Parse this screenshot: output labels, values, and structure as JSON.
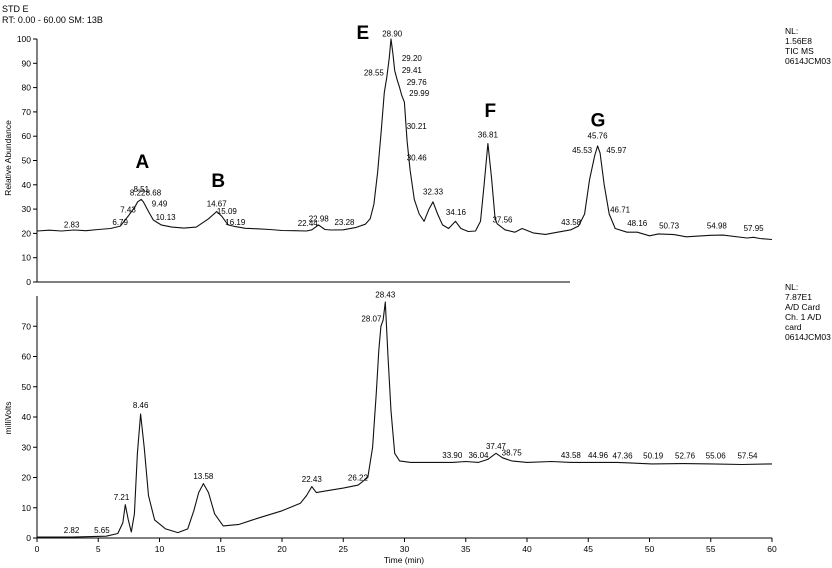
{
  "header": {
    "line1": "STD E",
    "line2": "RT: 0.00 - 60.00  SM: 13B"
  },
  "chart_data": [
    {
      "type": "line",
      "ylabel": "Relative Abundance",
      "xlim": [
        0,
        60
      ],
      "ylim": [
        0,
        100
      ],
      "yticks": [
        0,
        10,
        20,
        30,
        40,
        50,
        60,
        70,
        80,
        90,
        100
      ],
      "info_lines": [
        "NL:",
        "1.56E8",
        "TIC  MS",
        "0614JCM03"
      ],
      "series": [
        {
          "points": [
            [
              0,
              21
            ],
            [
              1,
              21.3
            ],
            [
              2,
              21
            ],
            [
              3,
              21.4
            ],
            [
              4,
              21.1
            ],
            [
              5,
              21.6
            ],
            [
              6,
              22
            ],
            [
              6.8,
              23
            ],
            [
              7.43,
              27
            ],
            [
              8.0,
              31
            ],
            [
              8.22,
              33
            ],
            [
              8.51,
              34
            ],
            [
              8.68,
              33
            ],
            [
              9.1,
              29
            ],
            [
              9.49,
              25.5
            ],
            [
              10.13,
              23.5
            ],
            [
              11,
              22.6
            ],
            [
              12,
              22.2
            ],
            [
              13,
              22.6
            ],
            [
              14,
              26
            ],
            [
              14.67,
              29
            ],
            [
              15.09,
              27
            ],
            [
              15.6,
              23.5
            ],
            [
              16.19,
              22.8
            ],
            [
              17,
              22.1
            ],
            [
              18,
              21.9
            ],
            [
              19,
              21.6
            ],
            [
              20,
              21.2
            ],
            [
              21,
              21.1
            ],
            [
              22,
              21
            ],
            [
              22.44,
              21.5
            ],
            [
              22.98,
              23.5
            ],
            [
              23.5,
              21.6
            ],
            [
              24,
              21.4
            ],
            [
              25,
              21.5
            ],
            [
              26,
              22.4
            ],
            [
              26.8,
              23.8
            ],
            [
              27.2,
              26
            ],
            [
              27.5,
              32
            ],
            [
              27.8,
              45
            ],
            [
              28.1,
              62
            ],
            [
              28.35,
              78
            ],
            [
              28.55,
              84
            ],
            [
              28.75,
              92
            ],
            [
              28.9,
              100
            ],
            [
              29.05,
              94
            ],
            [
              29.2,
              87
            ],
            [
              29.41,
              83
            ],
            [
              29.6,
              80
            ],
            [
              29.76,
              77
            ],
            [
              29.99,
              74
            ],
            [
              30.21,
              58
            ],
            [
              30.46,
              46
            ],
            [
              30.8,
              34
            ],
            [
              31.2,
              28
            ],
            [
              31.6,
              25
            ],
            [
              32.0,
              30
            ],
            [
              32.33,
              33
            ],
            [
              32.7,
              28
            ],
            [
              33.1,
              23.5
            ],
            [
              33.6,
              22
            ],
            [
              34.16,
              25
            ],
            [
              34.6,
              22
            ],
            [
              35.2,
              20.8
            ],
            [
              35.8,
              21
            ],
            [
              36.2,
              25
            ],
            [
              36.5,
              40
            ],
            [
              36.81,
              57
            ],
            [
              37.1,
              43
            ],
            [
              37.4,
              26
            ],
            [
              37.56,
              24
            ],
            [
              38.2,
              21.5
            ],
            [
              39,
              20.5
            ],
            [
              39.6,
              22
            ],
            [
              40.5,
              20.2
            ],
            [
              41.5,
              19.6
            ],
            [
              42.5,
              20.5
            ],
            [
              43.58,
              21.5
            ],
            [
              44.2,
              23
            ],
            [
              44.7,
              28
            ],
            [
              45.1,
              42
            ],
            [
              45.53,
              52
            ],
            [
              45.76,
              56
            ],
            [
              45.97,
              53
            ],
            [
              46.3,
              40
            ],
            [
              46.71,
              28
            ],
            [
              47.2,
              22
            ],
            [
              48.16,
              20.5
            ],
            [
              49,
              20.5
            ],
            [
              50,
              19
            ],
            [
              50.73,
              19.8
            ],
            [
              52,
              19.5
            ],
            [
              53,
              18.6
            ],
            [
              54.98,
              19.2
            ],
            [
              56,
              19.3
            ],
            [
              57.95,
              18.1
            ],
            [
              58.5,
              18.4
            ],
            [
              59,
              17.9
            ],
            [
              60,
              17.5
            ]
          ]
        }
      ],
      "peak_labels": [
        {
          "text": "2.83",
          "x": 2.83,
          "y": 22.5
        },
        {
          "text": "6.79",
          "x": 6.79,
          "y": 23.5
        },
        {
          "text": "7.43",
          "x": 7.43,
          "y": 28.5
        },
        {
          "text": "8.22",
          "x": 8.22,
          "y": 35.5
        },
        {
          "text": "8.51",
          "x": 8.51,
          "y": 37
        },
        {
          "text": "8.68",
          "x": 9.5,
          "y": 35.5
        },
        {
          "text": "9.49",
          "x": 10.0,
          "y": 31
        },
        {
          "text": "10.13",
          "x": 10.5,
          "y": 25.5
        },
        {
          "text": "14.67",
          "x": 14.67,
          "y": 31
        },
        {
          "text": "15.09",
          "x": 15.5,
          "y": 28
        },
        {
          "text": "16.19",
          "x": 16.19,
          "y": 23.5
        },
        {
          "text": "22.44",
          "x": 22.1,
          "y": 23
        },
        {
          "text": "22.98",
          "x": 23.0,
          "y": 25
        },
        {
          "text": "23.28",
          "x": 25.1,
          "y": 23.5
        },
        {
          "text": "28.55",
          "x": 27.5,
          "y": 85
        },
        {
          "text": "28.90",
          "x": 29.0,
          "y": 101
        },
        {
          "text": "29.20",
          "x": 30.6,
          "y": 91
        },
        {
          "text": "29.41",
          "x": 30.6,
          "y": 86
        },
        {
          "text": "29.76",
          "x": 31.0,
          "y": 81
        },
        {
          "text": "29.99",
          "x": 31.2,
          "y": 76.5
        },
        {
          "text": "30.21",
          "x": 31.0,
          "y": 63
        },
        {
          "text": "30.46",
          "x": 31.0,
          "y": 50
        },
        {
          "text": "32.33",
          "x": 32.33,
          "y": 36
        },
        {
          "text": "34.16",
          "x": 34.2,
          "y": 27.5
        },
        {
          "text": "36.81",
          "x": 36.81,
          "y": 59.5
        },
        {
          "text": "37.56",
          "x": 38.0,
          "y": 24.5
        },
        {
          "text": "43.58",
          "x": 43.6,
          "y": 23.5
        },
        {
          "text": "45.76",
          "x": 45.76,
          "y": 59
        },
        {
          "text": "45.53",
          "x": 44.5,
          "y": 53
        },
        {
          "text": "45.97",
          "x": 47.3,
          "y": 53
        },
        {
          "text": "46.71",
          "x": 47.6,
          "y": 28.5
        },
        {
          "text": "48.16",
          "x": 49.0,
          "y": 23
        },
        {
          "text": "50.73",
          "x": 51.6,
          "y": 22
        },
        {
          "text": "54.98",
          "x": 55.5,
          "y": 22
        },
        {
          "text": "57.95",
          "x": 58.5,
          "y": 21
        }
      ],
      "peak_letters": [
        {
          "text": "A",
          "x": 8.6,
          "y": 47
        },
        {
          "text": "B",
          "x": 14.8,
          "y": 39
        },
        {
          "text": "E",
          "x": 26.6,
          "y": 100
        },
        {
          "text": "F",
          "x": 37.0,
          "y": 68
        },
        {
          "text": "G",
          "x": 45.8,
          "y": 64
        }
      ]
    },
    {
      "type": "line",
      "xlabel": "Time (min)",
      "ylabel": "milliVolts",
      "xlim": [
        0,
        60
      ],
      "ylim": [
        0,
        80
      ],
      "yticks": [
        0,
        10,
        20,
        30,
        40,
        50,
        60,
        70
      ],
      "xticks": [
        0,
        5,
        10,
        15,
        20,
        25,
        30,
        35,
        40,
        45,
        50,
        55,
        60
      ],
      "info_lines": [
        "NL:",
        "7.87E1",
        "A/D Card",
        "Ch. 1  A/D",
        "card",
        "0614JCM03"
      ],
      "series": [
        {
          "points": [
            [
              0,
              0.3
            ],
            [
              2.82,
              0.3
            ],
            [
              5.65,
              0.6
            ],
            [
              6.6,
              1.5
            ],
            [
              7.0,
              5
            ],
            [
              7.21,
              11
            ],
            [
              7.45,
              6
            ],
            [
              7.7,
              2
            ],
            [
              7.95,
              8
            ],
            [
              8.2,
              28
            ],
            [
              8.46,
              41
            ],
            [
              8.75,
              30
            ],
            [
              9.1,
              14
            ],
            [
              9.6,
              6
            ],
            [
              10.5,
              3
            ],
            [
              11.5,
              1.8
            ],
            [
              12.3,
              3
            ],
            [
              12.8,
              9
            ],
            [
              13.2,
              15
            ],
            [
              13.58,
              18
            ],
            [
              14.0,
              15
            ],
            [
              14.5,
              8
            ],
            [
              15.2,
              4
            ],
            [
              16.5,
              4.5
            ],
            [
              18,
              6.5
            ],
            [
              20,
              9
            ],
            [
              21.5,
              11.5
            ],
            [
              22.0,
              14
            ],
            [
              22.43,
              17
            ],
            [
              22.8,
              15
            ],
            [
              23.5,
              15.5
            ],
            [
              25,
              16.5
            ],
            [
              26.22,
              17.5
            ],
            [
              27,
              20
            ],
            [
              27.4,
              30
            ],
            [
              27.7,
              48
            ],
            [
              27.9,
              62
            ],
            [
              28.07,
              70
            ],
            [
              28.25,
              72
            ],
            [
              28.43,
              78
            ],
            [
              28.65,
              60
            ],
            [
              28.9,
              42
            ],
            [
              29.2,
              28
            ],
            [
              29.6,
              25.5
            ],
            [
              30.5,
              25
            ],
            [
              31.5,
              25
            ],
            [
              33.9,
              25
            ],
            [
              35,
              25.3
            ],
            [
              36.04,
              25
            ],
            [
              36.8,
              26
            ],
            [
              37.47,
              28
            ],
            [
              38.0,
              26.5
            ],
            [
              38.75,
              25.5
            ],
            [
              40,
              25
            ],
            [
              42,
              25.3
            ],
            [
              43.58,
              25
            ],
            [
              44.96,
              25
            ],
            [
              47.36,
              25
            ],
            [
              50.19,
              24.5
            ],
            [
              52.76,
              24.6
            ],
            [
              55.06,
              24.5
            ],
            [
              57.54,
              24.3
            ],
            [
              60,
              24.5
            ]
          ]
        }
      ],
      "peak_labels": [
        {
          "text": "2.82",
          "x": 2.82,
          "y": 1.6
        },
        {
          "text": "5.65",
          "x": 5.3,
          "y": 1.6
        },
        {
          "text": "7.21",
          "x": 6.9,
          "y": 12.5
        },
        {
          "text": "8.46",
          "x": 8.46,
          "y": 43
        },
        {
          "text": "13.58",
          "x": 13.58,
          "y": 19.5
        },
        {
          "text": "22.43",
          "x": 22.43,
          "y": 18.5
        },
        {
          "text": "26.22",
          "x": 26.2,
          "y": 19
        },
        {
          "text": "28.07",
          "x": 27.3,
          "y": 71.5
        },
        {
          "text": "28.43",
          "x": 28.43,
          "y": 79.5
        },
        {
          "text": "33.90",
          "x": 33.9,
          "y": 26.5
        },
        {
          "text": "36.04",
          "x": 36.04,
          "y": 26.5
        },
        {
          "text": "37.47",
          "x": 37.47,
          "y": 29.5
        },
        {
          "text": "38.75",
          "x": 38.75,
          "y": 27.3
        },
        {
          "text": "43.58",
          "x": 43.58,
          "y": 26.5
        },
        {
          "text": "44.96",
          "x": 45.8,
          "y": 26.5
        },
        {
          "text": "47.36",
          "x": 47.8,
          "y": 26.3
        },
        {
          "text": "50.19",
          "x": 50.3,
          "y": 26.3
        },
        {
          "text": "52.76",
          "x": 52.9,
          "y": 26.2
        },
        {
          "text": "55.06",
          "x": 55.4,
          "y": 26.2
        },
        {
          "text": "57.54",
          "x": 58.0,
          "y": 26.2
        }
      ]
    }
  ]
}
